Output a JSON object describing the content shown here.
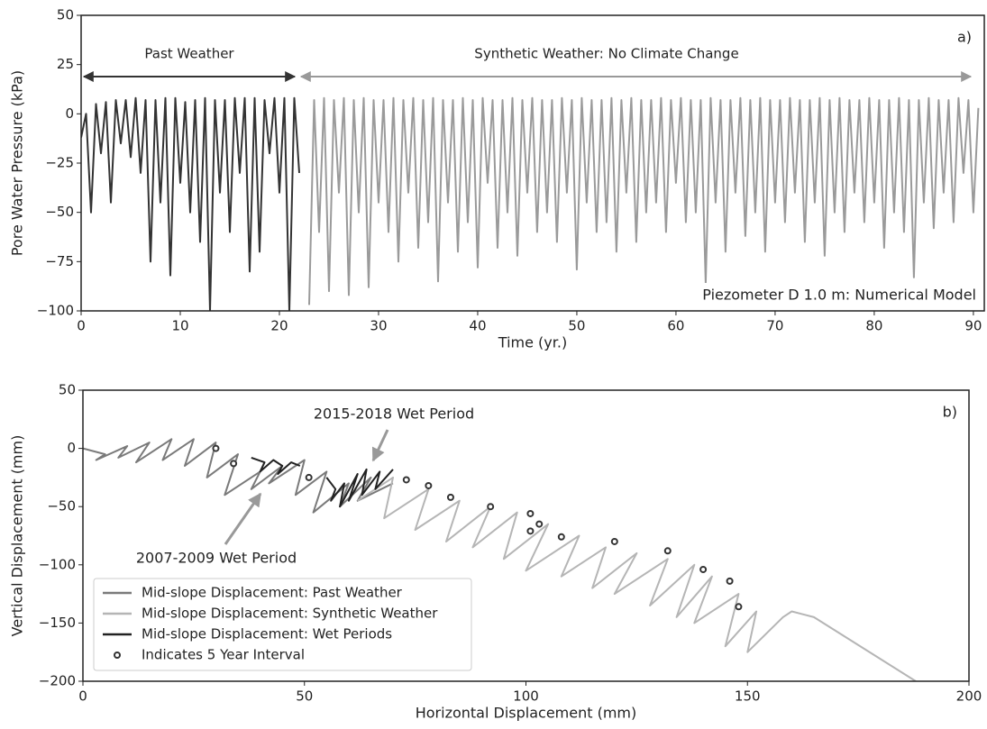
{
  "chart_data": [
    {
      "type": "line",
      "panel_label": "a)",
      "xlabel": "Time (yr.)",
      "ylabel": "Pore Water Pressure (kPa)",
      "annotations": [
        "Past Weather",
        "Synthetic Weather: No Climate Change"
      ],
      "text_box": "Piezometer D 1.0 m: Numerical Model",
      "xlim": [
        0,
        91.1
      ],
      "ylim": [
        -100,
        50
      ],
      "xticks": [
        0,
        10,
        20,
        30,
        40,
        50,
        60,
        70,
        80,
        90
      ],
      "yticks": [
        {
          "value": -100,
          "label": "−100"
        },
        {
          "value": -75,
          "label": "−75"
        },
        {
          "value": -50,
          "label": "−50"
        },
        {
          "value": -25,
          "label": "−25"
        },
        0,
        25,
        50
      ],
      "series": [
        {
          "color": "#333333",
          "x": [
            0,
            0.5,
            1,
            1.5,
            2,
            2.5,
            3,
            3.5,
            4,
            4.5,
            5,
            5.5,
            6,
            6.5,
            7,
            7.5,
            8,
            8.5,
            9,
            9.5,
            10,
            10.5,
            11,
            11.5,
            12,
            12.5,
            13,
            13.5,
            14,
            14.5,
            15,
            15.5,
            16,
            16.5,
            17,
            17.5,
            18,
            18.5,
            19,
            19.5,
            20,
            20.5,
            21,
            21.5,
            22
          ],
          "values": [
            -12,
            0,
            -50,
            5,
            -20,
            6,
            -45,
            7,
            -15,
            7,
            -22,
            8,
            -30,
            7,
            -75,
            7,
            -45,
            8,
            -82,
            8,
            -35,
            6,
            -50,
            7,
            -65,
            8,
            -100,
            7,
            -40,
            7,
            -60,
            8,
            -30,
            8,
            -80,
            8,
            -70,
            7,
            -20,
            8,
            -40,
            8,
            -100,
            8,
            -30
          ]
        },
        {
          "color": "#9a9a9a",
          "x": [
            23,
            23.5,
            24,
            24.5,
            25,
            25.5,
            26,
            26.5,
            27,
            27.5,
            28,
            28.5,
            29,
            29.5,
            30,
            30.5,
            31,
            31.5,
            32,
            32.5,
            33,
            33.5,
            34,
            34.5,
            35,
            35.5,
            36,
            36.5,
            37,
            37.5,
            38,
            38.5,
            39,
            39.5,
            40,
            40.5,
            41,
            41.5,
            42,
            42.5,
            43,
            43.5,
            44,
            44.5,
            45,
            45.5,
            46,
            46.5,
            47,
            47.5,
            48,
            48.5,
            49,
            49.5,
            50,
            50.5,
            51,
            51.5,
            52,
            52.5,
            53,
            53.5,
            54,
            54.5,
            55,
            55.5,
            56,
            56.5,
            57,
            57.5,
            58,
            58.5,
            59,
            59.5,
            60,
            60.5,
            61,
            61.5,
            62,
            62.5,
            63,
            63.5,
            64,
            64.5,
            65,
            65.5,
            66,
            66.5,
            67,
            67.5,
            68,
            68.5,
            69,
            69.5,
            70,
            70.5,
            71,
            71.5,
            72,
            72.5,
            73,
            73.5,
            74,
            74.5,
            75,
            75.5,
            76,
            76.5,
            77,
            77.5,
            78,
            78.5,
            79,
            79.5,
            80,
            80.5,
            81,
            81.5,
            82,
            82.5,
            83,
            83.5,
            84,
            84.5,
            85,
            85.5,
            86,
            86.5,
            87,
            87.5,
            88,
            88.5,
            89,
            89.5,
            90,
            90.5
          ],
          "values": [
            -97,
            7,
            -60,
            8,
            -90,
            7,
            -40,
            8,
            -92,
            7,
            -50,
            8,
            -88,
            7,
            -45,
            7,
            -60,
            8,
            -75,
            7,
            -40,
            8,
            -68,
            7,
            -55,
            8,
            -85,
            7,
            -45,
            7,
            -70,
            8,
            -55,
            7,
            -78,
            8,
            -35,
            7,
            -68,
            7,
            -50,
            8,
            -72,
            7,
            -40,
            8,
            -60,
            7,
            -50,
            7,
            -65,
            8,
            -40,
            7,
            -79,
            8,
            -45,
            7,
            -60,
            7,
            -55,
            8,
            -70,
            7,
            -40,
            8,
            -65,
            7,
            -50,
            7,
            -45,
            8,
            -60,
            7,
            -35,
            8,
            -55,
            7,
            -50,
            7,
            -86,
            8,
            -45,
            7,
            -70,
            7,
            -40,
            8,
            -62,
            7,
            -50,
            8,
            -70,
            7,
            -45,
            7,
            -55,
            8,
            -40,
            7,
            -65,
            7,
            -45,
            8,
            -72,
            7,
            -50,
            8,
            -60,
            7,
            -40,
            7,
            -55,
            8,
            -45,
            7,
            -68,
            7,
            -50,
            8,
            -60,
            7,
            -83,
            7,
            -45,
            8,
            -58,
            7,
            -40,
            7,
            -55,
            8,
            -30,
            7,
            -50,
            3
          ]
        }
      ]
    },
    {
      "type": "line",
      "panel_label": "b)",
      "xlabel": "Horizontal Displacement (mm)",
      "ylabel": "Vertical Displacement (mm)",
      "annotations": [
        "2015-2018 Wet Period",
        "2007-2009 Wet Period"
      ],
      "legend": "lower left",
      "xlim": [
        0,
        200
      ],
      "ylim": [
        -200,
        50
      ],
      "xticks": [
        0,
        50,
        100,
        150,
        200
      ],
      "yticks": [
        {
          "value": -200,
          "label": "−200"
        },
        {
          "value": -150,
          "label": "−150"
        },
        {
          "value": -100,
          "label": "−100"
        },
        {
          "value": -50,
          "label": "−50"
        },
        0,
        50
      ],
      "series": [
        {
          "name": "Mid-slope Displacement: Past Weather",
          "color": "#7a7a7a",
          "x": [
            0,
            5,
            3,
            10,
            8,
            15,
            12,
            20,
            18,
            25,
            23,
            30,
            28,
            35,
            32,
            40,
            38,
            45,
            42,
            50,
            48,
            55,
            52,
            60,
            58,
            65,
            62,
            70
          ],
          "values": [
            0,
            -5,
            -10,
            2,
            -8,
            5,
            -12,
            8,
            -10,
            8,
            -15,
            5,
            -25,
            -5,
            -40,
            -20,
            -35,
            -15,
            -30,
            -10,
            -40,
            -20,
            -55,
            -30,
            -50,
            -25,
            -45,
            -30
          ]
        },
        {
          "name": "Mid-slope Displacement: Synthetic Weather",
          "color": "#b5b5b5",
          "x": [
            62,
            70,
            68,
            78,
            75,
            85,
            82,
            92,
            88,
            98,
            95,
            105,
            100,
            112,
            108,
            118,
            115,
            125,
            120,
            132,
            128,
            138,
            134,
            142,
            138,
            148,
            145,
            152,
            150,
            158,
            160,
            165,
            188
          ],
          "values": [
            -45,
            -25,
            -60,
            -35,
            -70,
            -45,
            -80,
            -50,
            -85,
            -55,
            -95,
            -65,
            -105,
            -75,
            -110,
            -85,
            -120,
            -90,
            -125,
            -95,
            -135,
            -100,
            -145,
            -110,
            -150,
            -125,
            -170,
            -140,
            -175,
            -145,
            -140,
            -145,
            -200
          ]
        },
        {
          "name": "Mid-slope Displacement: Wet Periods",
          "color": "#222222",
          "x": [
            38,
            41,
            40,
            43,
            45,
            44,
            47,
            49,
            null,
            55,
            57,
            56,
            59,
            58,
            62,
            60,
            64,
            63,
            67,
            66,
            70
          ],
          "values": [
            -8,
            -12,
            -20,
            -10,
            -15,
            -22,
            -12,
            -15,
            null,
            -25,
            -35,
            -45,
            -30,
            -50,
            -22,
            -45,
            -18,
            -40,
            -20,
            -35,
            -18
          ]
        },
        {
          "name": "Indicates 5 Year Interval",
          "color": "#333333",
          "marker": "circle",
          "x": [
            30,
            34,
            51,
            73,
            78,
            83,
            92,
            101,
            101,
            103,
            108,
            120,
            132,
            140,
            146,
            148
          ],
          "values": [
            0,
            -13,
            -25,
            -27,
            -32,
            -42,
            -50,
            -56,
            -71,
            -65,
            -76,
            -80,
            -88,
            -104,
            -114,
            -136
          ]
        }
      ]
    }
  ]
}
